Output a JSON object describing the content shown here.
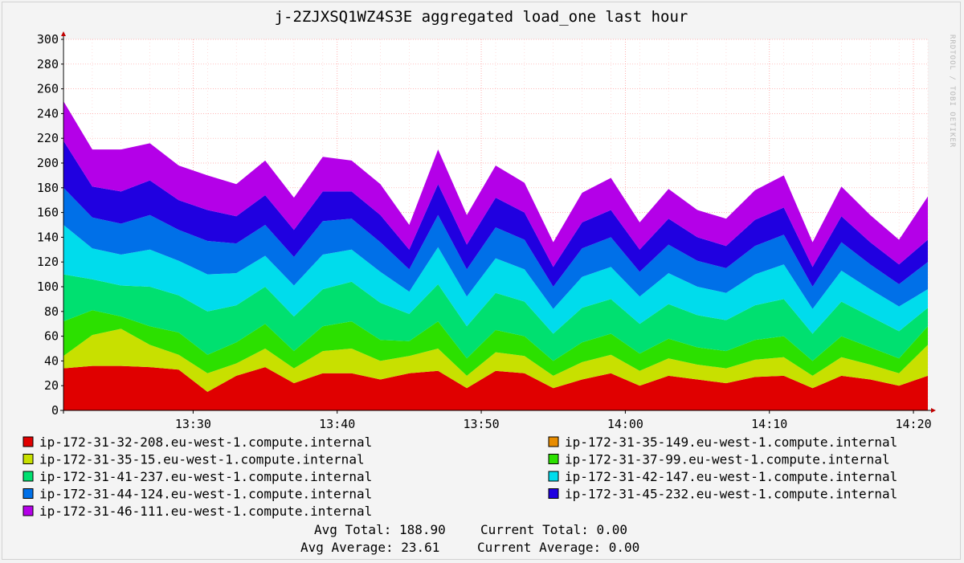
{
  "chart_data": {
    "type": "area",
    "title": "j-2ZJXSQ1WZ4S3E aggregated load_one last hour",
    "watermark": "RRDTOOL / TOBI OETIKER",
    "ylim": [
      0,
      300
    ],
    "y_ticks": [
      "0",
      "20",
      "40",
      "60",
      "80",
      "100",
      "120",
      "140",
      "160",
      "180",
      "200",
      "220",
      "240",
      "260",
      "280",
      "300"
    ],
    "x_range": [
      "13:21",
      "14:21"
    ],
    "x_ticks": [
      {
        "t": "13:30",
        "label": "13:30"
      },
      {
        "t": "13:40",
        "label": "13:40"
      },
      {
        "t": "13:50",
        "label": "13:50"
      },
      {
        "t": "14:00",
        "label": "14:00"
      },
      {
        "t": "14:10",
        "label": "14:10"
      },
      {
        "t": "14:20",
        "label": "14:20"
      }
    ],
    "x": [
      "13:21",
      "13:23",
      "13:25",
      "13:27",
      "13:29",
      "13:31",
      "13:33",
      "13:35",
      "13:37",
      "13:39",
      "13:41",
      "13:43",
      "13:45",
      "13:47",
      "13:49",
      "13:51",
      "13:53",
      "13:55",
      "13:57",
      "13:59",
      "14:01",
      "14:03",
      "14:05",
      "14:07",
      "14:09",
      "14:11",
      "14:13",
      "14:15",
      "14:17",
      "14:19",
      "14:21"
    ],
    "series": [
      {
        "name": "ip-172-31-32-208.eu-west-1.compute.internal",
        "color": "#e00000",
        "values": [
          34,
          36,
          36,
          35,
          33,
          15,
          28,
          35,
          22,
          30,
          30,
          25,
          30,
          32,
          18,
          32,
          30,
          18,
          25,
          30,
          20,
          28,
          25,
          22,
          27,
          28,
          18,
          28,
          25,
          20,
          28
        ]
      },
      {
        "name": "ip-172-31-35-149.eu-west-1.compute.internal",
        "color": "#e88c00",
        "values": [
          0,
          0,
          0,
          0,
          0,
          0,
          0,
          0,
          0,
          0,
          0,
          0,
          0,
          0,
          0,
          0,
          0,
          0,
          0,
          0,
          0,
          0,
          0,
          0,
          0,
          0,
          0,
          0,
          0,
          0,
          0
        ]
      },
      {
        "name": "ip-172-31-35-15.eu-west-1.compute.internal",
        "color": "#c8e000",
        "values": [
          10,
          25,
          30,
          18,
          12,
          15,
          10,
          15,
          12,
          18,
          20,
          15,
          14,
          18,
          10,
          15,
          14,
          10,
          14,
          15,
          12,
          14,
          12,
          12,
          14,
          15,
          10,
          15,
          12,
          10,
          25
        ]
      },
      {
        "name": "ip-172-31-37-99.eu-west-1.compute.internal",
        "color": "#2ce000",
        "values": [
          28,
          20,
          10,
          15,
          18,
          15,
          17,
          20,
          14,
          20,
          22,
          17,
          12,
          22,
          14,
          18,
          16,
          12,
          16,
          17,
          14,
          16,
          14,
          14,
          16,
          17,
          12,
          17,
          14,
          12,
          15
        ]
      },
      {
        "name": "ip-172-31-41-237.eu-west-1.compute.internal",
        "color": "#00e070",
        "values": [
          38,
          25,
          25,
          32,
          30,
          35,
          30,
          30,
          28,
          30,
          32,
          30,
          22,
          30,
          26,
          30,
          28,
          22,
          28,
          28,
          24,
          28,
          26,
          25,
          28,
          30,
          22,
          28,
          25,
          22,
          15
        ]
      },
      {
        "name": "ip-172-31-42-147.eu-west-1.compute.internal",
        "color": "#00dcec",
        "values": [
          40,
          25,
          25,
          30,
          28,
          30,
          26,
          25,
          25,
          28,
          26,
          25,
          18,
          30,
          24,
          28,
          26,
          20,
          25,
          26,
          22,
          25,
          23,
          22,
          25,
          28,
          20,
          25,
          22,
          20,
          15
        ]
      },
      {
        "name": "ip-172-31-44-124.eu-west-1.compute.internal",
        "color": "#0070e8",
        "values": [
          30,
          25,
          25,
          28,
          25,
          27,
          24,
          25,
          23,
          27,
          25,
          24,
          18,
          26,
          22,
          25,
          24,
          18,
          23,
          24,
          20,
          23,
          21,
          20,
          23,
          24,
          18,
          23,
          20,
          18,
          22
        ]
      },
      {
        "name": "ip-172-31-45-232.eu-west-1.compute.internal",
        "color": "#2000e0",
        "values": [
          38,
          25,
          26,
          28,
          24,
          25,
          22,
          24,
          22,
          24,
          22,
          22,
          16,
          25,
          20,
          24,
          22,
          16,
          21,
          22,
          18,
          21,
          19,
          18,
          21,
          22,
          16,
          21,
          18,
          16,
          18
        ]
      },
      {
        "name": "ip-172-31-46-111.eu-west-1.compute.internal",
        "color": "#b400e8",
        "values": [
          32,
          30,
          34,
          30,
          28,
          28,
          26,
          28,
          26,
          28,
          25,
          25,
          20,
          28,
          24,
          26,
          24,
          20,
          24,
          26,
          22,
          24,
          22,
          22,
          24,
          26,
          20,
          24,
          22,
          20,
          35
        ]
      }
    ],
    "legend_placement": "bottom",
    "stats": {
      "avg_total": "Avg Total: 188.90",
      "current_total": "Current Total:  0.00",
      "avg_average": "Avg Average: 23.61",
      "current_average": "Current Average:  0.00"
    }
  }
}
